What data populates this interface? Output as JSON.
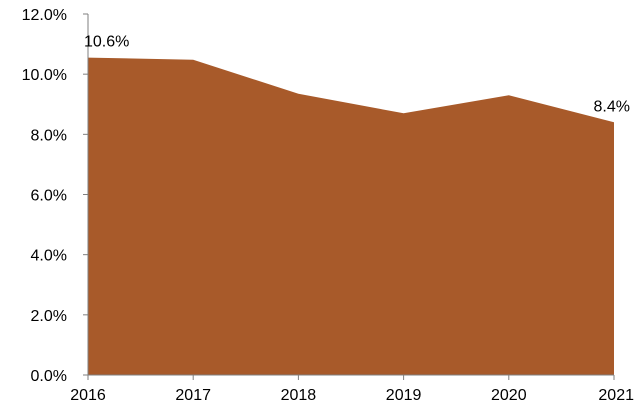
{
  "chart_data": {
    "type": "area",
    "title": "",
    "xlabel": "",
    "ylabel": "",
    "x": [
      "2016",
      "2017",
      "2018",
      "2019",
      "2020",
      "2021"
    ],
    "values": [
      10.55,
      10.48,
      9.35,
      8.7,
      9.3,
      8.4
    ],
    "ylim": [
      0,
      12
    ],
    "ytick_values": [
      0,
      2,
      4,
      6,
      8,
      10,
      12
    ],
    "ytick_labels": [
      "0.0%",
      "2.0%",
      "4.0%",
      "6.0%",
      "8.0%",
      "10.0%",
      "12.0%"
    ],
    "data_labels": [
      {
        "index": 0,
        "text": "10.6%"
      },
      {
        "index": 5,
        "text": "8.4%"
      }
    ],
    "fill_color": "#a85a2a",
    "grid": false,
    "legend": "none"
  }
}
